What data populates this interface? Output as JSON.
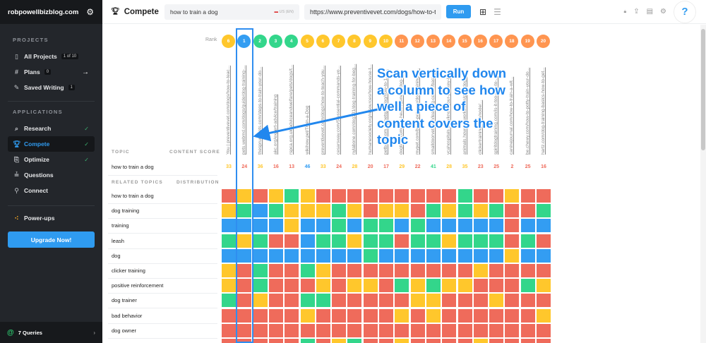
{
  "sidebar": {
    "domain": "robpowellbizblog.com",
    "projects_heading": "PROJECTS",
    "projects": [
      {
        "label": "All Projects",
        "badge": "1 of 10",
        "icon": "projects-icon"
      },
      {
        "label": "Plans",
        "badge": "0",
        "icon": "hash-icon",
        "arrow": "→"
      },
      {
        "label": "Saved Writing",
        "badge": "1",
        "icon": "edit-icon"
      }
    ],
    "applications_heading": "APPLICATIONS",
    "applications": [
      {
        "label": "Research",
        "icon": "research-icon",
        "checked": true
      },
      {
        "label": "Compete",
        "icon": "trophy-icon",
        "checked": true,
        "active": true
      },
      {
        "label": "Optimize",
        "icon": "optimize-icon",
        "checked": true
      },
      {
        "label": "Questions",
        "icon": "questions-icon",
        "checked": false
      },
      {
        "label": "Connect",
        "icon": "connect-icon",
        "checked": false
      }
    ],
    "powerups": "Power-ups",
    "upgrade": "Upgrade Now!",
    "queries": "7 Queries"
  },
  "header": {
    "title": "Compete",
    "topic_value": "how to train a dog",
    "locale": "US (EN)",
    "url_value": "https://www.preventivevet.com/dogs/how-to-t",
    "run": "Run",
    "help": "?"
  },
  "colors": {
    "red": "#ef6b5b",
    "yellow": "#ffc72c",
    "green": "#33d68b",
    "blue": "#339df2",
    "orange": "#ff9550",
    "accent": "#2f9bf0"
  },
  "table": {
    "rank_label": "Rank",
    "topic_heading": "TOPIC",
    "content_score_heading": "CONTENT SCORE",
    "topic": "how to train a dog",
    "related_heading": "RELATED TOPICS",
    "distribution_heading": "DISTRIBUTION",
    "columns": [
      {
        "rank": "6",
        "rank_color": "yellow",
        "url": "You | preventivevet.com/dogs/how-to-teac...",
        "score": "33",
        "score_color": "yellow"
      },
      {
        "rank": "1",
        "rank_color": "blue",
        "url": "pets.webmd.com/dogs/guide/dog-training-...",
        "score": "24",
        "score_color": "red"
      },
      {
        "rank": "2",
        "rank_color": "green",
        "url": "thesprucepets.com/steps-to-train-your-do...",
        "score": "36",
        "score_color": "yellow"
      },
      {
        "rank": "3",
        "rank_color": "green",
        "url": "akc.org/expert-advice/training",
        "score": "16",
        "score_color": "red"
      },
      {
        "rank": "4",
        "rank_color": "green",
        "url": "rspca.org.uk/adviceandwelfare/pets/dogs/t...",
        "score": "13",
        "score_color": "red"
      },
      {
        "rank": "5",
        "rank_color": "yellow",
        "url": "wikihow.pet/Train-a-Dog",
        "score": "46",
        "score_color": "blue"
      },
      {
        "rank": "6",
        "rank_color": "yellow",
        "url": "preventivevet.com/dogs/how-to-teach-you...",
        "score": "33",
        "score_color": "yellow"
      },
      {
        "rank": "7",
        "rank_color": "yellow",
        "url": "cesarsway.com/5-essential-commands-yo...",
        "score": "24",
        "score_color": "red"
      },
      {
        "rank": "8",
        "rank_color": "yellow",
        "url": "nylabone.com/dog101/dog-training-for-beg...",
        "score": "28",
        "score_color": "yellow"
      },
      {
        "rank": "9",
        "rank_color": "yellow",
        "url": "humanesociety.org/resources/how-house-t...",
        "score": "20",
        "score_color": "red"
      },
      {
        "rank": "10",
        "rank_color": "yellow",
        "url": "petbarn.com.au/petspot/dog/how-to-130...",
        "score": "17",
        "score_color": "red"
      },
      {
        "rank": "11",
        "rank_color": "orange",
        "url": "dogtime.com/dog-health/general/dog-g...",
        "score": "29",
        "score_color": "yellow"
      },
      {
        "rank": "12",
        "rank_color": "orange",
        "url": "mypet.com/basic-pet-care/dog-training-d...",
        "score": "22",
        "score_color": "red"
      },
      {
        "rank": "13",
        "rank_color": "orange",
        "url": "smalldoorvet.com/learning-center/basic...",
        "score": "41",
        "score_color": "green"
      },
      {
        "rank": "14",
        "rank_color": "orange",
        "url": "vcahospitals.com/know-your-pet/key-be...",
        "score": "28",
        "score_color": "yellow"
      },
      {
        "rank": "15",
        "rank_color": "orange",
        "url": "animals.howstuffworks.com/pets/dog-tr...",
        "score": "35",
        "score_color": "yellow"
      },
      {
        "rank": "16",
        "rank_color": "orange",
        "url": "clickertraining.com/node/...",
        "score": "23",
        "score_color": "red"
      },
      {
        "rank": "17",
        "rank_color": "orange",
        "url": "spiritdogtraining.com/is-it-too-late-to-...",
        "score": "25",
        "score_color": "red"
      },
      {
        "rank": "18",
        "rank_color": "orange",
        "url": "caninejournal.com/how-to-train-a-wit...",
        "score": "2",
        "score_color": "red"
      },
      {
        "rank": "19",
        "rank_color": "orange",
        "url": "be.chewy.com/how-to-potty-train-your-do...",
        "score": "25",
        "score_color": "red"
      },
      {
        "rank": "20",
        "rank_color": "orange",
        "url": "hartz.com/dog-training-basics-how-to-get...",
        "score": "16",
        "score_color": "red"
      }
    ],
    "related_topics": [
      {
        "label": "how to train a dog",
        "cells": [
          "red",
          "yellow",
          "red",
          "yellow",
          "green",
          "yellow",
          "red",
          "red",
          "red",
          "red",
          "red",
          "red",
          "red",
          "red",
          "red",
          "green",
          "red",
          "red",
          "yellow",
          "red",
          "red"
        ]
      },
      {
        "label": "dog training",
        "cells": [
          "yellow",
          "green",
          "blue",
          "green",
          "yellow",
          "yellow",
          "yellow",
          "green",
          "yellow",
          "red",
          "yellow",
          "yellow",
          "red",
          "green",
          "yellow",
          "green",
          "yellow",
          "green",
          "red",
          "red",
          "green"
        ]
      },
      {
        "label": "training",
        "cells": [
          "blue",
          "blue",
          "blue",
          "blue",
          "yellow",
          "blue",
          "blue",
          "green",
          "blue",
          "green",
          "green",
          "blue",
          "green",
          "blue",
          "blue",
          "blue",
          "blue",
          "blue",
          "red",
          "blue",
          "blue"
        ]
      },
      {
        "label": "leash",
        "cells": [
          "green",
          "yellow",
          "green",
          "red",
          "red",
          "blue",
          "green",
          "green",
          "yellow",
          "green",
          "green",
          "red",
          "green",
          "green",
          "yellow",
          "green",
          "green",
          "green",
          "red",
          "green",
          "red"
        ]
      },
      {
        "label": "dog",
        "cells": [
          "blue",
          "blue",
          "blue",
          "blue",
          "blue",
          "blue",
          "blue",
          "blue",
          "blue",
          "green",
          "blue",
          "blue",
          "blue",
          "blue",
          "blue",
          "blue",
          "blue",
          "blue",
          "yellow",
          "blue",
          "blue"
        ]
      },
      {
        "label": "clicker training",
        "cells": [
          "yellow",
          "red",
          "green",
          "red",
          "red",
          "green",
          "yellow",
          "red",
          "red",
          "red",
          "red",
          "red",
          "red",
          "red",
          "red",
          "red",
          "yellow",
          "red",
          "red",
          "red",
          "red"
        ]
      },
      {
        "label": "positive reinforcement",
        "cells": [
          "yellow",
          "red",
          "green",
          "red",
          "red",
          "red",
          "yellow",
          "red",
          "yellow",
          "yellow",
          "red",
          "green",
          "yellow",
          "green",
          "yellow",
          "yellow",
          "red",
          "red",
          "red",
          "green",
          "yellow"
        ]
      },
      {
        "label": "dog trainer",
        "cells": [
          "green",
          "red",
          "yellow",
          "red",
          "red",
          "green",
          "green",
          "red",
          "red",
          "red",
          "red",
          "red",
          "yellow",
          "yellow",
          "red",
          "red",
          "red",
          "yellow",
          "red",
          "red",
          "red"
        ]
      },
      {
        "label": "bad behavior",
        "cells": [
          "red",
          "red",
          "red",
          "red",
          "red",
          "yellow",
          "red",
          "red",
          "red",
          "red",
          "red",
          "yellow",
          "red",
          "yellow",
          "red",
          "red",
          "red",
          "red",
          "red",
          "red",
          "yellow"
        ]
      },
      {
        "label": "dog owner",
        "cells": [
          "red",
          "red",
          "red",
          "red",
          "red",
          "red",
          "red",
          "red",
          "red",
          "red",
          "red",
          "red",
          "red",
          "red",
          "red",
          "red",
          "red",
          "red",
          "red",
          "red",
          "red"
        ]
      },
      {
        "label": "",
        "cells": [
          "red",
          "red",
          "red",
          "red",
          "red",
          "green",
          "red",
          "yellow",
          "green",
          "red",
          "red",
          "yellow",
          "red",
          "red",
          "red",
          "red",
          "yellow",
          "red",
          "red",
          "red",
          "red"
        ]
      }
    ]
  },
  "annotation": {
    "lines": [
      "Scan vertically down",
      "a column to see how",
      "well a piece of",
      "content covers the",
      "topic"
    ]
  }
}
